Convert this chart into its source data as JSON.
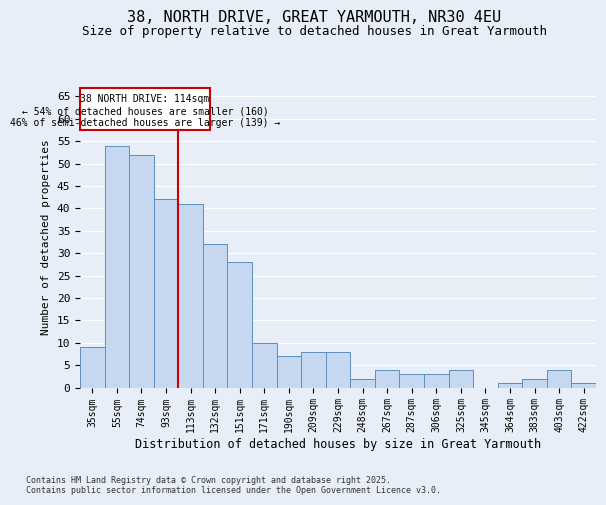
{
  "title1": "38, NORTH DRIVE, GREAT YARMOUTH, NR30 4EU",
  "title2": "Size of property relative to detached houses in Great Yarmouth",
  "xlabel": "Distribution of detached houses by size in Great Yarmouth",
  "ylabel": "Number of detached properties",
  "categories": [
    "35sqm",
    "55sqm",
    "74sqm",
    "93sqm",
    "113sqm",
    "132sqm",
    "151sqm",
    "171sqm",
    "190sqm",
    "209sqm",
    "229sqm",
    "248sqm",
    "267sqm",
    "287sqm",
    "306sqm",
    "325sqm",
    "345sqm",
    "364sqm",
    "383sqm",
    "403sqm",
    "422sqm"
  ],
  "values": [
    9,
    54,
    52,
    42,
    41,
    32,
    28,
    10,
    7,
    8,
    8,
    2,
    4,
    3,
    3,
    4,
    0,
    1,
    2,
    4,
    1
  ],
  "bar_color": "#c5d8f0",
  "bar_edge_color": "#5a8fc0",
  "highlight_line_index": 4,
  "highlight_line_color": "#cc0000",
  "annotation_text": "38 NORTH DRIVE: 114sqm\n← 54% of detached houses are smaller (160)\n46% of semi-detached houses are larger (139) →",
  "annotation_box_color": "#cc0000",
  "ylim": [
    0,
    67
  ],
  "yticks": [
    0,
    5,
    10,
    15,
    20,
    25,
    30,
    35,
    40,
    45,
    50,
    55,
    60,
    65
  ],
  "background_color": "#e8eef7",
  "grid_color": "#ffffff",
  "footnote": "Contains HM Land Registry data © Crown copyright and database right 2025.\nContains public sector information licensed under the Open Government Licence v3.0."
}
